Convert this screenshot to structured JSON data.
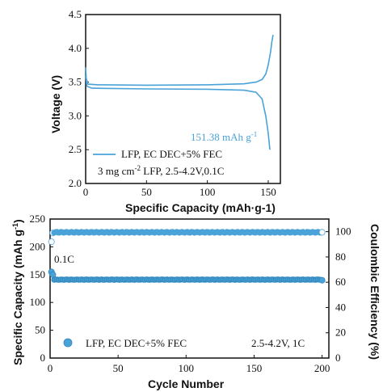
{
  "chart_data": [
    {
      "type": "line",
      "panel": "top",
      "xlabel": "Specific Capacity (mAh·g-1)",
      "ylabel": "Voltage (V)",
      "xlim": [
        0,
        160
      ],
      "ylim": [
        2.0,
        4.5
      ],
      "xticks": [
        "0",
        "50",
        "100",
        "150"
      ],
      "yticks": [
        "2.0",
        "2.5",
        "3.0",
        "3.5",
        "4.0",
        "4.5"
      ],
      "series": [
        {
          "name": "LFP, EC DEC+5% FEC",
          "color": "#4aa3d8",
          "charge": {
            "x": [
              0,
              0.5,
              2,
              10,
              50,
              100,
              130,
              140,
              145,
              148,
              150,
              152,
              153,
              154
            ],
            "y": [
              3.72,
              3.55,
              3.47,
              3.46,
              3.455,
              3.46,
              3.475,
              3.5,
              3.54,
              3.62,
              3.75,
              3.95,
              4.1,
              4.2
            ]
          },
          "discharge": {
            "x": [
              0,
              1,
              5,
              50,
              100,
              130,
              140,
              145,
              148,
              150,
              151.38
            ],
            "y": [
              3.6,
              3.44,
              3.41,
              3.4,
              3.395,
              3.38,
              3.35,
              3.25,
              3.0,
              2.75,
              2.5
            ]
          }
        }
      ],
      "annotations": {
        "capacity": "151.38 mAh g",
        "capacity_sup": "-1",
        "legend": "LFP, EC DEC+5% FEC",
        "condition_a": "3 mg cm",
        "condition_sup": "-2",
        "condition_b": " LFP, 2.5-4.2V,0.1C"
      },
      "legend_position": "lower-left"
    },
    {
      "type": "scatter",
      "panel": "bottom",
      "xlabel": "Cycle Number",
      "ylabel_left": "Specific Capacity (mAh g",
      "ylabel_left_sup": "-1",
      "ylabel_left_end": ")",
      "ylabel_right": "Coulombic Efficiency (%)",
      "xlim": [
        0,
        205
      ],
      "ylim_left": [
        0,
        250
      ],
      "ylim_right": [
        0,
        110
      ],
      "xticks": [
        "0",
        "50",
        "100",
        "150",
        "200"
      ],
      "yticks_left": [
        "0",
        "50",
        "100",
        "150",
        "200",
        "250"
      ],
      "yticks_right": [
        "0",
        "20",
        "40",
        "60",
        "80",
        "100"
      ],
      "series": [
        {
          "name": "Specific Capacity",
          "axis": "left",
          "color": "#4aa3d8",
          "first_points": [
            155,
            150
          ],
          "steady": 141,
          "end": 140,
          "cycles": 200
        },
        {
          "name": "Coulombic Efficiency",
          "axis": "right",
          "color": "#4aa3d8",
          "first_points": [
            92,
            99
          ],
          "steady": 99.5,
          "end": 99.5,
          "cycles": 200
        }
      ],
      "annotations": {
        "rate_label": "0.1C",
        "legend": "LFP, EC DEC+5% FEC",
        "condition": "2.5-4.2V, 1C"
      },
      "legend_position": "bottom-left"
    }
  ]
}
